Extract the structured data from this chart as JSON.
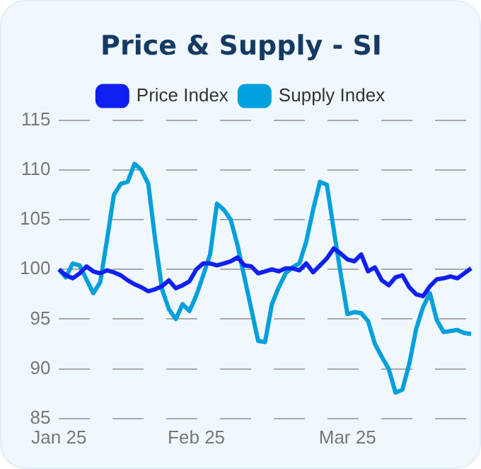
{
  "chart_data": {
    "type": "line",
    "title": "Price & Supply - SI",
    "categories": [
      "Jan 25",
      null,
      null,
      null,
      null,
      null,
      null,
      null,
      null,
      null,
      null,
      null,
      null,
      null,
      null,
      null,
      null,
      null,
      null,
      null,
      "Feb 25",
      null,
      null,
      null,
      null,
      null,
      null,
      null,
      null,
      null,
      null,
      null,
      null,
      null,
      null,
      null,
      null,
      null,
      null,
      null,
      null,
      null,
      "Mar 25",
      null,
      null,
      null,
      null,
      null,
      null,
      null,
      null,
      null,
      null,
      null,
      null,
      null,
      null,
      null,
      null,
      null,
      null
    ],
    "series": [
      {
        "name": "Price Index",
        "color": "#1020f0",
        "values": [
          100,
          99.4,
          99.1,
          99.6,
          100.3,
          99.8,
          99.6,
          99.9,
          99.7,
          99.4,
          98.9,
          98.5,
          98.2,
          97.8,
          98,
          98.3,
          98.9,
          98.1,
          98.4,
          98.8,
          100,
          100.6,
          100.6,
          100.4,
          100.6,
          100.8,
          101.2,
          100.4,
          100.3,
          99.6,
          99.8,
          100,
          99.8,
          100.1,
          100.1,
          99.9,
          100.6,
          99.7,
          100.4,
          101.1,
          102.1,
          101.6,
          101,
          100.8,
          101.5,
          99.8,
          100.2,
          98.9,
          98.4,
          99.2,
          99.4,
          98.2,
          97.5,
          97.3,
          98.3,
          99,
          99.1,
          99.3,
          99.1,
          99.6,
          100.1
        ]
      },
      {
        "name": "Supply Index",
        "color": "#00a0dc",
        "values": [
          100,
          99.2,
          100.6,
          100.4,
          99,
          97.6,
          98.7,
          103,
          107.5,
          108.6,
          108.8,
          110.6,
          110,
          108.6,
          103,
          98,
          96,
          95,
          96.5,
          95.8,
          97.4,
          99.4,
          101.5,
          106.6,
          106,
          105,
          102.4,
          99.2,
          96,
          92.8,
          92.7,
          96.5,
          98.2,
          99.6,
          100.2,
          100.6,
          102.8,
          106,
          108.8,
          108.5,
          104,
          99.6,
          95.5,
          95.7,
          95.6,
          94.8,
          92.5,
          91.2,
          90,
          87.6,
          87.9,
          90.5,
          94,
          96.2,
          97.6,
          94.9,
          93.7,
          93.8,
          93.9,
          93.6,
          93.5
        ]
      }
    ],
    "ylim": [
      85,
      115
    ],
    "yticks": [
      85,
      90,
      95,
      100,
      105,
      110,
      115
    ],
    "grid": "y",
    "legend": "top"
  }
}
